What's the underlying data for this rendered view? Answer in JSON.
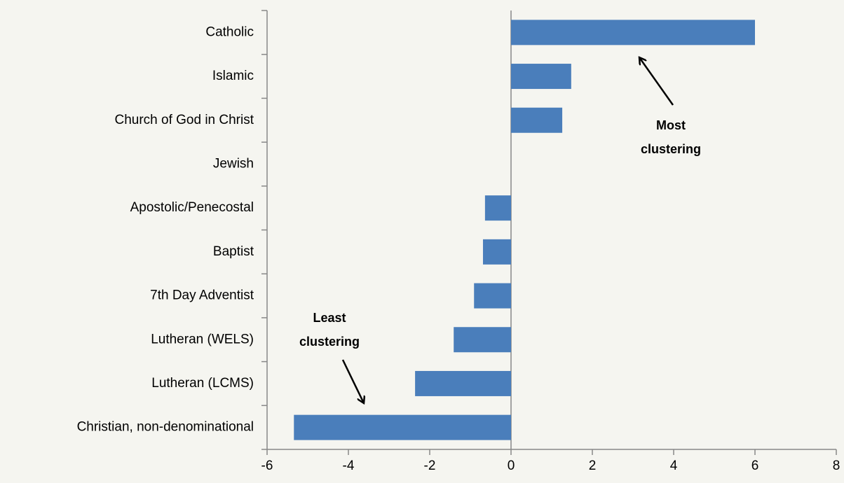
{
  "chart_data": {
    "type": "hbar",
    "categories": [
      "Catholic",
      "Islamic",
      "Church of God in Christ",
      "Jewish",
      "Apostolic/Penecostal",
      "Baptist",
      "7th Day Adventist",
      "Lutheran (WELS)",
      "Lutheran (LCMS)",
      "Christian, non-denominational"
    ],
    "values": [
      6.0,
      1.48,
      1.26,
      0,
      -0.64,
      -0.69,
      -0.91,
      -1.41,
      -2.36,
      -5.34
    ],
    "color": "#4a7ebb",
    "xlim": [
      -6,
      8
    ],
    "xticks": [
      -6,
      -4,
      -2,
      0,
      2,
      4,
      6,
      8
    ],
    "annotations": [
      {
        "lines": [
          "Most",
          "clustering"
        ]
      },
      {
        "lines": [
          "Least",
          "clustering"
        ]
      }
    ]
  }
}
